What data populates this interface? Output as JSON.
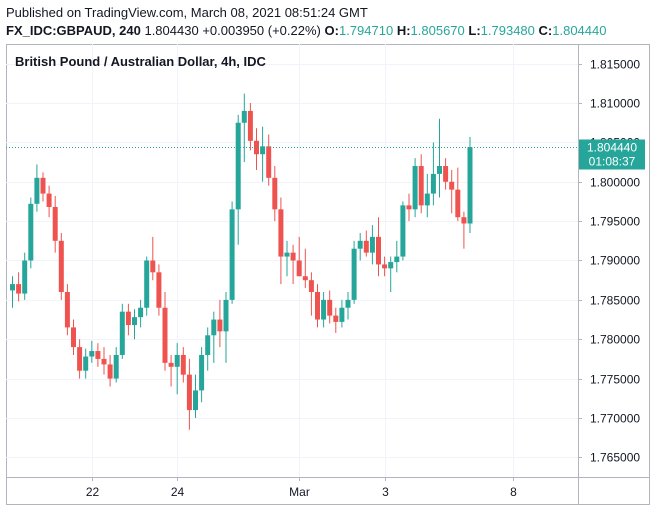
{
  "header": {
    "published": "Published on TradingView.com, March 08, 2021 08:51:24 GMT",
    "symbol": "FX_IDC:GBPAUD, 240",
    "last": "1.804430",
    "change": "+0.003950 (+0.22%)",
    "o_label": "O:",
    "o_value": "1.794710",
    "h_label": "H:",
    "h_value": "1.805670",
    "l_label": "L:",
    "l_value": "1.793480",
    "c_label": "C:",
    "c_value": "1.804440"
  },
  "price_tag": {
    "price": "1.804440",
    "countdown": "01:08:37"
  },
  "colors": {
    "up": "#26a69a",
    "down": "#ef5350",
    "grid": "#f0f3fa",
    "axis_text": "#131722"
  },
  "chart_data": {
    "type": "candlestick",
    "title": "British Pound / Australian Dollar, 4h, IDC",
    "ylim": [
      1.7625,
      1.8175
    ],
    "y_ticks": [
      "1.815000",
      "1.810000",
      "1.805000",
      "1.800000",
      "1.795000",
      "1.790000",
      "1.785000",
      "1.780000",
      "1.775000",
      "1.770000",
      "1.765000"
    ],
    "x_ticks": [
      {
        "label": "22",
        "index": 13
      },
      {
        "label": "24",
        "index": 27
      },
      {
        "label": "Mar",
        "index": 47
      },
      {
        "label": "3",
        "index": 61
      },
      {
        "label": "8",
        "index": 82
      }
    ],
    "candles": [
      {
        "o": 1.7862,
        "h": 1.788,
        "l": 1.784,
        "c": 1.787
      },
      {
        "o": 1.787,
        "h": 1.7885,
        "l": 1.7848,
        "c": 1.7858
      },
      {
        "o": 1.7858,
        "h": 1.791,
        "l": 1.785,
        "c": 1.79
      },
      {
        "o": 1.79,
        "h": 1.798,
        "l": 1.789,
        "c": 1.7972
      },
      {
        "o": 1.7972,
        "h": 1.8022,
        "l": 1.7962,
        "c": 1.8005
      },
      {
        "o": 1.8005,
        "h": 1.8012,
        "l": 1.7975,
        "c": 1.7985
      },
      {
        "o": 1.7985,
        "h": 1.7995,
        "l": 1.7955,
        "c": 1.7968
      },
      {
        "o": 1.7968,
        "h": 1.7982,
        "l": 1.791,
        "c": 1.7925
      },
      {
        "o": 1.7925,
        "h": 1.7935,
        "l": 1.785,
        "c": 1.786
      },
      {
        "o": 1.786,
        "h": 1.787,
        "l": 1.7805,
        "c": 1.7815
      },
      {
        "o": 1.7815,
        "h": 1.7825,
        "l": 1.778,
        "c": 1.779
      },
      {
        "o": 1.779,
        "h": 1.78,
        "l": 1.775,
        "c": 1.776
      },
      {
        "o": 1.776,
        "h": 1.7788,
        "l": 1.775,
        "c": 1.7778
      },
      {
        "o": 1.7778,
        "h": 1.7798,
        "l": 1.777,
        "c": 1.7785
      },
      {
        "o": 1.7785,
        "h": 1.7795,
        "l": 1.7765,
        "c": 1.7775
      },
      {
        "o": 1.7775,
        "h": 1.779,
        "l": 1.7755,
        "c": 1.7768
      },
      {
        "o": 1.7768,
        "h": 1.778,
        "l": 1.774,
        "c": 1.775
      },
      {
        "o": 1.775,
        "h": 1.779,
        "l": 1.7745,
        "c": 1.778
      },
      {
        "o": 1.778,
        "h": 1.7845,
        "l": 1.7775,
        "c": 1.7835
      },
      {
        "o": 1.7835,
        "h": 1.7845,
        "l": 1.7805,
        "c": 1.7818
      },
      {
        "o": 1.7818,
        "h": 1.7838,
        "l": 1.78,
        "c": 1.7828
      },
      {
        "o": 1.7828,
        "h": 1.785,
        "l": 1.7815,
        "c": 1.784
      },
      {
        "o": 1.784,
        "h": 1.7905,
        "l": 1.783,
        "c": 1.79
      },
      {
        "o": 1.79,
        "h": 1.793,
        "l": 1.7875,
        "c": 1.7885
      },
      {
        "o": 1.7885,
        "h": 1.7895,
        "l": 1.783,
        "c": 1.784
      },
      {
        "o": 1.784,
        "h": 1.786,
        "l": 1.776,
        "c": 1.777
      },
      {
        "o": 1.777,
        "h": 1.778,
        "l": 1.774,
        "c": 1.7765
      },
      {
        "o": 1.7765,
        "h": 1.7795,
        "l": 1.773,
        "c": 1.778
      },
      {
        "o": 1.778,
        "h": 1.779,
        "l": 1.7745,
        "c": 1.7755
      },
      {
        "o": 1.7755,
        "h": 1.7775,
        "l": 1.7685,
        "c": 1.771
      },
      {
        "o": 1.771,
        "h": 1.7755,
        "l": 1.77,
        "c": 1.7735
      },
      {
        "o": 1.7735,
        "h": 1.779,
        "l": 1.772,
        "c": 1.778
      },
      {
        "o": 1.778,
        "h": 1.7815,
        "l": 1.776,
        "c": 1.7805
      },
      {
        "o": 1.7805,
        "h": 1.7835,
        "l": 1.777,
        "c": 1.7825
      },
      {
        "o": 1.7825,
        "h": 1.785,
        "l": 1.779,
        "c": 1.781
      },
      {
        "o": 1.781,
        "h": 1.786,
        "l": 1.777,
        "c": 1.785
      },
      {
        "o": 1.785,
        "h": 1.7975,
        "l": 1.7845,
        "c": 1.7965
      },
      {
        "o": 1.7965,
        "h": 1.8085,
        "l": 1.792,
        "c": 1.8075
      },
      {
        "o": 1.8075,
        "h": 1.8112,
        "l": 1.8025,
        "c": 1.809
      },
      {
        "o": 1.809,
        "h": 1.81,
        "l": 1.804,
        "c": 1.8052
      },
      {
        "o": 1.8052,
        "h": 1.8068,
        "l": 1.8015,
        "c": 1.8035
      },
      {
        "o": 1.8035,
        "h": 1.807,
        "l": 1.8,
        "c": 1.8045
      },
      {
        "o": 1.8045,
        "h": 1.806,
        "l": 1.7995,
        "c": 1.8005
      },
      {
        "o": 1.8005,
        "h": 1.802,
        "l": 1.795,
        "c": 1.7965
      },
      {
        "o": 1.7965,
        "h": 1.798,
        "l": 1.787,
        "c": 1.7905
      },
      {
        "o": 1.7905,
        "h": 1.7925,
        "l": 1.788,
        "c": 1.791
      },
      {
        "o": 1.791,
        "h": 1.792,
        "l": 1.787,
        "c": 1.79
      },
      {
        "o": 1.79,
        "h": 1.793,
        "l": 1.788,
        "c": 1.788
      },
      {
        "o": 1.788,
        "h": 1.7915,
        "l": 1.7865,
        "c": 1.7875
      },
      {
        "o": 1.7875,
        "h": 1.7885,
        "l": 1.783,
        "c": 1.786
      },
      {
        "o": 1.786,
        "h": 1.787,
        "l": 1.7815,
        "c": 1.7825
      },
      {
        "o": 1.7825,
        "h": 1.786,
        "l": 1.7815,
        "c": 1.785
      },
      {
        "o": 1.785,
        "h": 1.7862,
        "l": 1.782,
        "c": 1.783
      },
      {
        "o": 1.783,
        "h": 1.784,
        "l": 1.7808,
        "c": 1.7822
      },
      {
        "o": 1.7822,
        "h": 1.785,
        "l": 1.7815,
        "c": 1.784
      },
      {
        "o": 1.784,
        "h": 1.786,
        "l": 1.7825,
        "c": 1.785
      },
      {
        "o": 1.785,
        "h": 1.7925,
        "l": 1.7845,
        "c": 1.7915
      },
      {
        "o": 1.7915,
        "h": 1.7935,
        "l": 1.79,
        "c": 1.7925
      },
      {
        "o": 1.7925,
        "h": 1.7938,
        "l": 1.7905,
        "c": 1.791
      },
      {
        "o": 1.791,
        "h": 1.7945,
        "l": 1.7895,
        "c": 1.793
      },
      {
        "o": 1.793,
        "h": 1.7955,
        "l": 1.788,
        "c": 1.7895
      },
      {
        "o": 1.7895,
        "h": 1.7905,
        "l": 1.788,
        "c": 1.789
      },
      {
        "o": 1.789,
        "h": 1.7905,
        "l": 1.786,
        "c": 1.7898
      },
      {
        "o": 1.7898,
        "h": 1.7925,
        "l": 1.7885,
        "c": 1.7905
      },
      {
        "o": 1.7905,
        "h": 1.7975,
        "l": 1.79,
        "c": 1.797
      },
      {
        "o": 1.797,
        "h": 1.7985,
        "l": 1.795,
        "c": 1.7965
      },
      {
        "o": 1.7965,
        "h": 1.803,
        "l": 1.7955,
        "c": 1.802
      },
      {
        "o": 1.802,
        "h": 1.8035,
        "l": 1.796,
        "c": 1.797
      },
      {
        "o": 1.797,
        "h": 1.801,
        "l": 1.7955,
        "c": 1.7985
      },
      {
        "o": 1.7985,
        "h": 1.805,
        "l": 1.797,
        "c": 1.801
      },
      {
        "o": 1.801,
        "h": 1.808,
        "l": 1.798,
        "c": 1.802
      },
      {
        "o": 1.802,
        "h": 1.803,
        "l": 1.799,
        "c": 1.8
      },
      {
        "o": 1.8,
        "h": 1.8015,
        "l": 1.796,
        "c": 1.799
      },
      {
        "o": 1.799,
        "h": 1.8018,
        "l": 1.795,
        "c": 1.7955
      },
      {
        "o": 1.7955,
        "h": 1.7962,
        "l": 1.7915,
        "c": 1.7947
      },
      {
        "o": 1.7947,
        "h": 1.8057,
        "l": 1.7935,
        "c": 1.8044
      }
    ]
  }
}
